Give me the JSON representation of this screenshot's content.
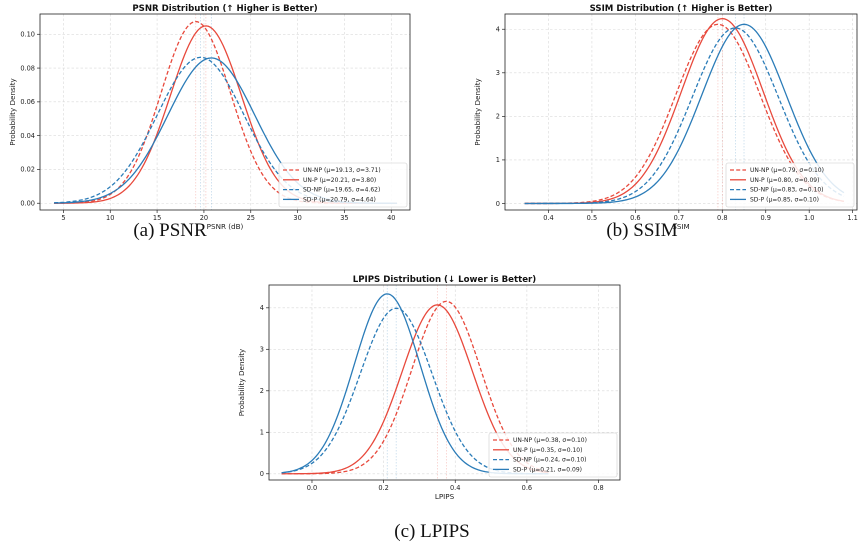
{
  "colors": {
    "red": "#e8493c",
    "blue": "#2b7cb8",
    "grid": "#d9d9d9"
  },
  "captions": [
    "(a) PSNR",
    "(b) SSIM",
    "(c) LPIPS"
  ],
  "chart_data": [
    {
      "type": "line",
      "title": "PSNR Distribution (↑ Higher is Better)",
      "xlabel": "PSNR (dB)",
      "ylabel": "Probability Density",
      "xlim": [
        2.5,
        42
      ],
      "ylim": [
        -0.004,
        0.112
      ],
      "xticks": [
        5,
        10,
        15,
        20,
        25,
        30,
        35,
        40
      ],
      "yticks": [
        0.0,
        0.02,
        0.04,
        0.06,
        0.08,
        0.1
      ],
      "ytick_decimals": 2,
      "x_range": [
        4.0,
        40.6
      ],
      "grid": true,
      "legend_position": "lower right",
      "series": [
        {
          "name": "UN-NP (μ=19.13, σ=3.71)",
          "mean": 19.13,
          "std": 3.71,
          "color": "red",
          "style": "dashed"
        },
        {
          "name": "UN-P (μ=20.21, σ=3.80)",
          "mean": 20.21,
          "std": 3.8,
          "color": "red",
          "style": "solid"
        },
        {
          "name": "SD-NP (μ=19.65, σ=4.62)",
          "mean": 19.65,
          "std": 4.62,
          "color": "blue",
          "style": "dashed"
        },
        {
          "name": "SD-P (μ=20.79, σ=4.64)",
          "mean": 20.79,
          "std": 4.64,
          "color": "blue",
          "style": "solid"
        }
      ]
    },
    {
      "type": "line",
      "title": "SSIM Distribution (↑ Higher is Better)",
      "xlabel": "SSIM",
      "ylabel": "Probability Density",
      "xlim": [
        0.3,
        1.11
      ],
      "ylim": [
        -0.15,
        4.35
      ],
      "xticks": [
        0.4,
        0.5,
        0.6,
        0.7,
        0.8,
        0.9,
        1.0,
        1.1
      ],
      "yticks": [
        0,
        1,
        2,
        3,
        4
      ],
      "ytick_decimals": 0,
      "x_range": [
        0.345,
        1.08
      ],
      "grid": true,
      "legend_position": "lower right",
      "series": [
        {
          "name": "UN-NP (μ=0.79, σ=0.10)",
          "mean": 0.79,
          "std": 0.097,
          "color": "red",
          "style": "dashed"
        },
        {
          "name": "UN-P (μ=0.80, σ=0.09)",
          "mean": 0.8,
          "std": 0.094,
          "color": "red",
          "style": "solid"
        },
        {
          "name": "SD-NP (μ=0.83, σ=0.10)",
          "mean": 0.83,
          "std": 0.099,
          "color": "blue",
          "style": "dashed"
        },
        {
          "name": "SD-P (μ=0.85, σ=0.10)",
          "mean": 0.85,
          "std": 0.097,
          "color": "blue",
          "style": "solid"
        }
      ]
    },
    {
      "type": "line",
      "title": "LPIPS Distribution (↓ Lower is Better)",
      "xlabel": "LPIPS",
      "ylabel": "Probability Density",
      "xlim": [
        -0.12,
        0.86
      ],
      "ylim": [
        -0.15,
        4.55
      ],
      "xticks": [
        0.0,
        0.2,
        0.4,
        0.6,
        0.8
      ],
      "yticks": [
        0,
        1,
        2,
        3,
        4
      ],
      "ytick_decimals": 0,
      "x_range": [
        -0.085,
        0.66
      ],
      "grid": true,
      "legend_position": "lower right",
      "series": [
        {
          "name": "UN-NP (μ=0.38, σ=0.10)",
          "mean": 0.375,
          "std": 0.096,
          "color": "red",
          "style": "dashed"
        },
        {
          "name": "UN-P (μ=0.35, σ=0.10)",
          "mean": 0.35,
          "std": 0.098,
          "color": "red",
          "style": "solid"
        },
        {
          "name": "SD-NP (μ=0.24, σ=0.10)",
          "mean": 0.235,
          "std": 0.1,
          "color": "blue",
          "style": "dashed"
        },
        {
          "name": "SD-P (μ=0.21, σ=0.09)",
          "mean": 0.21,
          "std": 0.092,
          "color": "blue",
          "style": "solid"
        }
      ]
    }
  ]
}
